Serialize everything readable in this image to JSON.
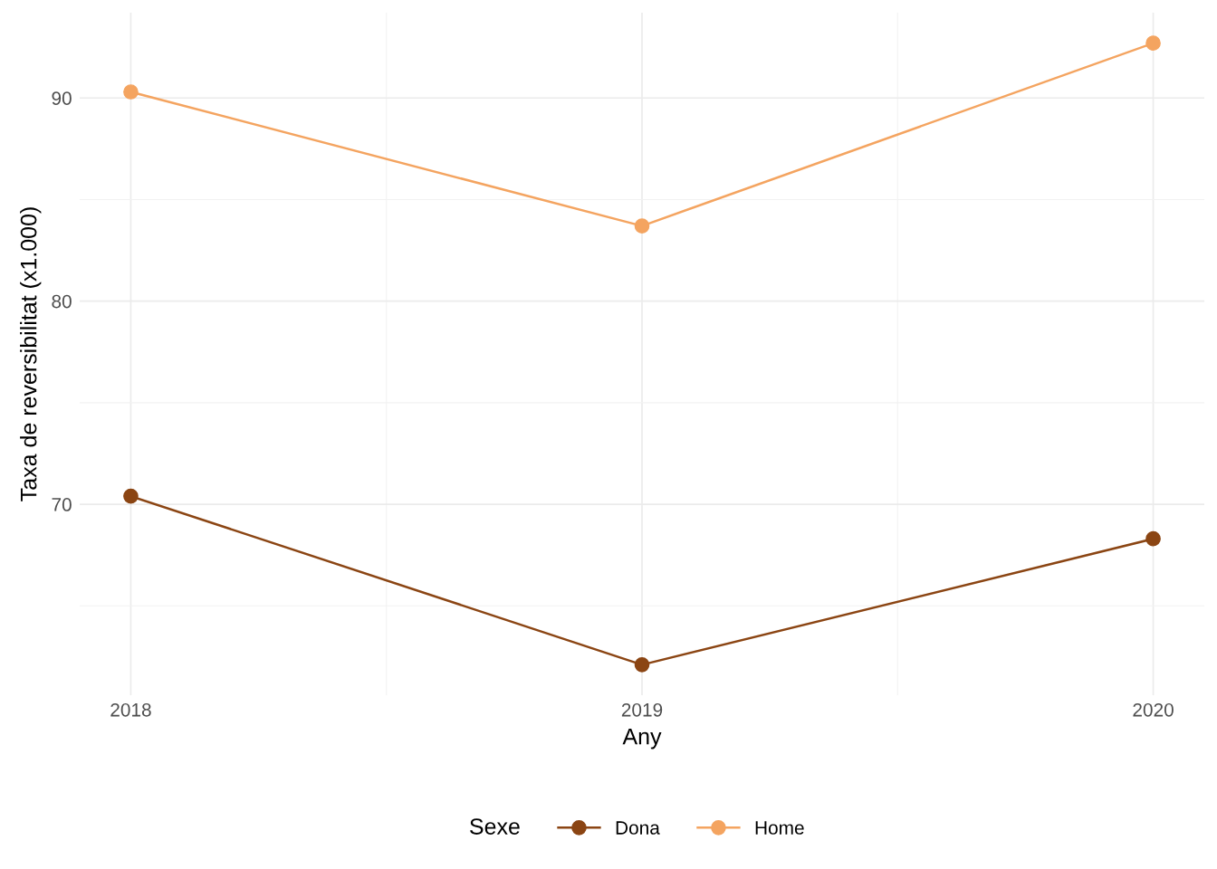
{
  "chart_data": {
    "type": "line",
    "xlabel": "Any",
    "ylabel": "Taxa de reversibilitat (x1.000)",
    "legend_title": "Sexe",
    "x": [
      2018,
      2019,
      2020
    ],
    "series": [
      {
        "name": "Dona",
        "color": "#8b4513",
        "values": [
          70.4,
          62.1,
          68.3
        ]
      },
      {
        "name": "Home",
        "color": "#f4a460",
        "values": [
          90.3,
          83.7,
          92.7
        ]
      }
    ],
    "xlim": [
      2017.9,
      2020.1
    ],
    "xticks": [
      2018,
      2019,
      2020
    ],
    "ylim": [
      60.6,
      94.2
    ],
    "yticks": [
      70,
      80,
      90
    ],
    "grid": true,
    "legend": "bottom",
    "marker": "circle",
    "line_style": "solid"
  }
}
